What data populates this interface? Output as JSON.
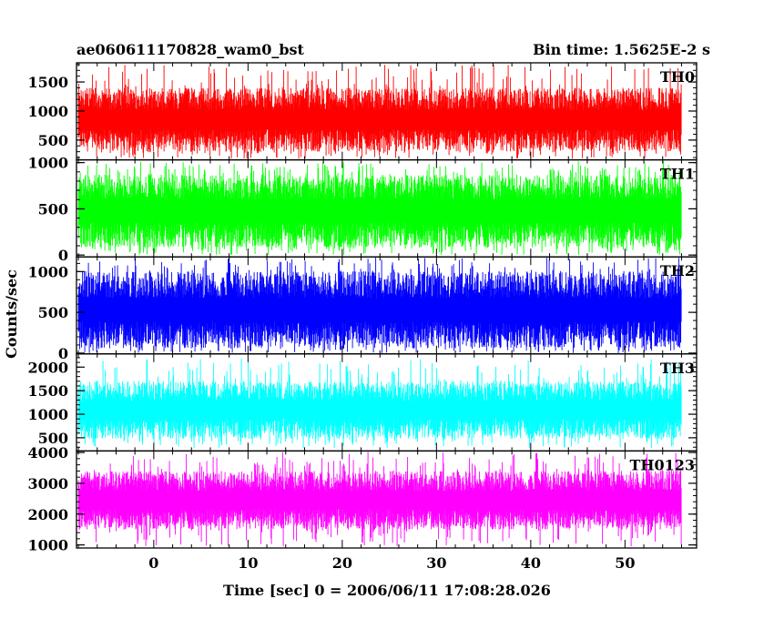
{
  "title_left": "ae060611170828_wam0_bst",
  "title_right": "Bin time: 1.5625E-2 s",
  "ylabel": "Counts/sec",
  "xlabel": "Time [sec] 0 = 2006/06/11 17:08:28.026",
  "chart_data": {
    "type": "line",
    "x_range": [
      -8,
      56
    ],
    "xlim": [
      -8.2,
      57.6
    ],
    "x_ticks": [
      0,
      10,
      20,
      30,
      40,
      50
    ],
    "x_tick_labels": [
      "0",
      "10",
      "20",
      "30",
      "40",
      "50"
    ],
    "x_minor_step": 2,
    "panels": [
      {
        "name": "TH0",
        "color": "#ff0000",
        "ylim": [
          160,
          1830
        ],
        "y_ticks": [
          500,
          1000,
          1500
        ],
        "y_tick_labels": [
          "500",
          "1000",
          "1500"
        ],
        "y_minor_step": 100,
        "low_typical": 300,
        "high_typical": 1400,
        "extreme_min": 180,
        "extreme_max": 1800
      },
      {
        "name": "TH1",
        "color": "#00ff00",
        "ylim": [
          -20,
          1030
        ],
        "y_ticks": [
          0,
          500,
          1000
        ],
        "y_tick_labels": [
          "0",
          "500",
          "1000"
        ],
        "y_minor_step": 100,
        "low_typical": 80,
        "high_typical": 870,
        "extreme_min": 0,
        "extreme_max": 1020
      },
      {
        "name": "TH2",
        "color": "#0000ff",
        "ylim": [
          -10,
          1180
        ],
        "y_ticks": [
          0,
          500,
          1000
        ],
        "y_tick_labels": [
          "0",
          "500",
          "1000"
        ],
        "y_minor_step": 100,
        "low_typical": 60,
        "high_typical": 1000,
        "extreme_min": 0,
        "extreme_max": 1170
      },
      {
        "name": "TH3",
        "color": "#00ffff",
        "ylim": [
          220,
          2280
        ],
        "y_ticks": [
          500,
          1000,
          1500,
          2000
        ],
        "y_tick_labels": [
          "500",
          "1000",
          "1500",
          "2000"
        ],
        "y_minor_step": 100,
        "low_typical": 480,
        "high_typical": 1700,
        "extreme_min": 280,
        "extreme_max": 2200
      },
      {
        "name": "TH0123",
        "color": "#ff00ff",
        "ylim": [
          900,
          4050
        ],
        "y_ticks": [
          1000,
          2000,
          3000,
          4000
        ],
        "y_tick_labels": [
          "1000",
          "2000",
          "3000",
          "4000"
        ],
        "y_minor_step": 200,
        "low_typical": 1500,
        "high_typical": 3400,
        "extreme_min": 950,
        "extreme_max": 4030
      }
    ]
  }
}
